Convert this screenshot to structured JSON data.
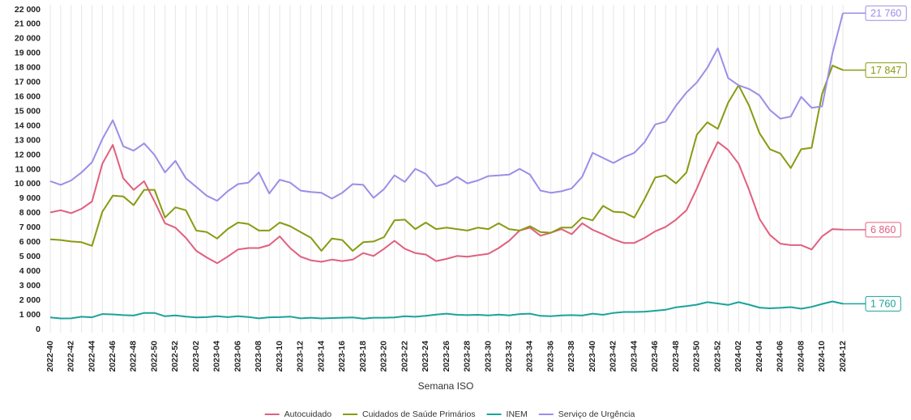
{
  "chart_data": {
    "type": "line",
    "x_label": "Semana ISO",
    "categories": [
      "2022-40",
      null,
      "2022-42",
      null,
      "2022-44",
      null,
      "2022-46",
      null,
      "2022-48",
      null,
      "2022-50",
      null,
      "2022-52",
      null,
      "2023-02",
      null,
      "2023-04",
      null,
      "2023-06",
      null,
      "2023-08",
      null,
      "2023-10",
      null,
      "2023-12",
      null,
      "2023-14",
      null,
      "2023-16",
      null,
      "2023-18",
      null,
      "2023-20",
      null,
      "2023-22",
      null,
      "2023-24",
      null,
      "2023-26",
      null,
      "2023-28",
      null,
      "2023-30",
      null,
      "2023-32",
      null,
      "2023-34",
      null,
      "2023-36",
      null,
      "2023-38",
      null,
      "2023-40",
      null,
      "2023-42",
      null,
      "2023-44",
      null,
      "2023-46",
      null,
      "2023-48",
      null,
      "2023-50",
      null,
      "2023-52",
      null,
      "2024-02",
      null,
      "2024-04",
      null,
      "2024-06",
      null,
      "2024-08",
      null,
      "2024-10",
      null,
      "2024-12"
    ],
    "ylim": [
      0,
      22000
    ],
    "yticks": [
      0,
      {
        "value": 1000,
        "label": "1 000"
      },
      {
        "value": 2000,
        "label": "2 000"
      },
      {
        "value": 3000,
        "label": "3 000"
      },
      {
        "value": 4000,
        "label": "4 000"
      },
      {
        "value": 5000,
        "label": "5 000"
      },
      {
        "value": 6000,
        "label": "6 000"
      },
      {
        "value": 7000,
        "label": "7 000"
      },
      {
        "value": 8000,
        "label": "8 000"
      },
      {
        "value": 9000,
        "label": "9 000"
      },
      {
        "value": 10000,
        "label": "10 000"
      },
      {
        "value": 11000,
        "label": "11 000"
      },
      {
        "value": 12000,
        "label": "12 000"
      },
      {
        "value": 13000,
        "label": "13 000"
      },
      {
        "value": 14000,
        "label": "14 000"
      },
      {
        "value": 15000,
        "label": "15 000"
      },
      {
        "value": 16000,
        "label": "16 000"
      },
      {
        "value": 17000,
        "label": "17 000"
      },
      {
        "value": 18000,
        "label": "18 000"
      },
      {
        "value": 19000,
        "label": "19 000"
      },
      {
        "value": 20000,
        "label": "20 000"
      },
      {
        "value": 21000,
        "label": "21 000"
      },
      {
        "value": 22000,
        "label": "22 000"
      }
    ],
    "grid": "x",
    "legend": "bottom",
    "series": [
      {
        "name": "Autocuidado",
        "color": "#e0607e",
        "end_label": "6 860",
        "values": [
          8050,
          8200,
          8000,
          8300,
          8800,
          11400,
          12700,
          10400,
          9600,
          10200,
          8800,
          7300,
          7000,
          6300,
          5400,
          4950,
          4550,
          5000,
          5500,
          5600,
          5600,
          5800,
          6400,
          5600,
          5000,
          4750,
          4650,
          4800,
          4700,
          4800,
          5250,
          5050,
          5550,
          6100,
          5550,
          5250,
          5150,
          4700,
          4850,
          5050,
          5000,
          5100,
          5200,
          5600,
          6100,
          6800,
          7000,
          6450,
          6650,
          6900,
          6550,
          7300,
          6850,
          6550,
          6200,
          5950,
          5950,
          6300,
          6750,
          7050,
          7550,
          8200,
          9700,
          11400,
          12900,
          12350,
          11400,
          9600,
          7600,
          6500,
          5900,
          5800,
          5800,
          5500,
          6400,
          6900,
          6860
        ]
      },
      {
        "name": "Cuidados de Saúde Primários",
        "color": "#8a9a12",
        "end_label": "17 847",
        "values": [
          6200,
          6150,
          6050,
          6000,
          5750,
          8100,
          9200,
          9150,
          8550,
          9600,
          9600,
          7700,
          8400,
          8200,
          6800,
          6700,
          6250,
          6900,
          7350,
          7250,
          6800,
          6800,
          7350,
          7100,
          6700,
          6300,
          5400,
          6250,
          6150,
          5400,
          6000,
          6050,
          6350,
          7500,
          7550,
          6900,
          7350,
          6900,
          7000,
          6900,
          6800,
          7000,
          6900,
          7300,
          6900,
          6800,
          7100,
          6700,
          6650,
          7000,
          7000,
          7700,
          7500,
          8500,
          8100,
          8050,
          7700,
          9000,
          10450,
          10600,
          10050,
          10800,
          13400,
          14250,
          13800,
          15600,
          16800,
          15400,
          13500,
          12400,
          12100,
          11100,
          12400,
          12500,
          16200,
          18150,
          17847
        ]
      },
      {
        "name": "INEM",
        "color": "#1aa39a",
        "end_label": "1 760",
        "values": [
          820,
          750,
          760,
          870,
          830,
          1050,
          1030,
          980,
          950,
          1130,
          1130,
          900,
          960,
          880,
          820,
          840,
          900,
          840,
          910,
          850,
          760,
          830,
          840,
          880,
          760,
          800,
          750,
          780,
          800,
          820,
          740,
          800,
          800,
          820,
          900,
          870,
          930,
          1020,
          1080,
          1000,
          980,
          1000,
          960,
          1020,
          960,
          1050,
          1080,
          930,
          900,
          960,
          980,
          950,
          1080,
          1000,
          1130,
          1200,
          1200,
          1220,
          1280,
          1350,
          1520,
          1600,
          1700,
          1870,
          1780,
          1680,
          1870,
          1700,
          1500,
          1450,
          1480,
          1530,
          1420,
          1550,
          1750,
          1920,
          1760
        ]
      },
      {
        "name": "Serviço de Urgência",
        "color": "#9b8ee8",
        "end_label": "21 760",
        "values": [
          10200,
          9950,
          10250,
          10800,
          11500,
          13100,
          14400,
          12600,
          12300,
          12800,
          12000,
          10800,
          11600,
          10400,
          9800,
          9200,
          8850,
          9500,
          10000,
          10100,
          10800,
          9350,
          10300,
          10100,
          9550,
          9450,
          9400,
          9000,
          9400,
          10000,
          9950,
          9050,
          9650,
          10600,
          10150,
          11050,
          10700,
          9850,
          10050,
          10500,
          10050,
          10250,
          10550,
          10600,
          10650,
          11050,
          10650,
          9550,
          9400,
          9500,
          9700,
          10500,
          12150,
          11800,
          11450,
          11850,
          12150,
          12900,
          14100,
          14300,
          15400,
          16300,
          17000,
          18000,
          19350,
          17300,
          16800,
          16550,
          16100,
          15100,
          14500,
          14650,
          16000,
          15250,
          15350,
          19000,
          21760
        ]
      }
    ]
  }
}
